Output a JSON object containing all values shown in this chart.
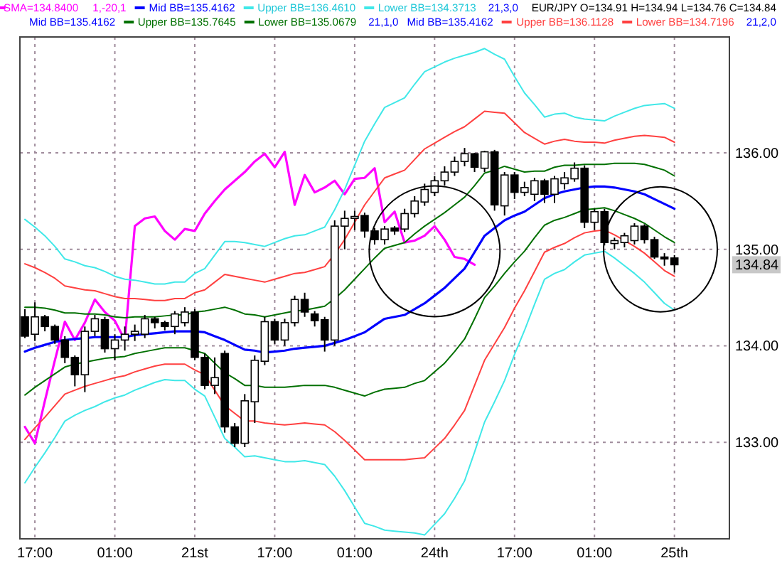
{
  "chart_data": {
    "type": "candlestick",
    "legend": "top",
    "grid": true,
    "categories": [
      null,
      "17:00",
      null,
      null,
      null,
      null,
      null,
      null,
      null,
      "01:00",
      null,
      null,
      null,
      null,
      null,
      null,
      null,
      "21st",
      null,
      null,
      null,
      null,
      null,
      null,
      null,
      "17:00",
      null,
      null,
      null,
      null,
      null,
      null,
      null,
      "01:00",
      null,
      null,
      null,
      null,
      null,
      null,
      null,
      "24th",
      null,
      null,
      null,
      null,
      null,
      null,
      null,
      "17:00",
      null,
      null,
      null,
      null,
      null,
      null,
      null,
      "01:00",
      null,
      null,
      null,
      null,
      null,
      null,
      null,
      "25th"
    ],
    "ylim": [
      132.0,
      137.2
    ],
    "yticks": [
      {
        "value": 133,
        "label": "133.00"
      },
      {
        "value": 134,
        "label": "134.00"
      },
      {
        "value": 135,
        "label": "135.00"
      },
      {
        "value": 136,
        "label": "136.00"
      }
    ],
    "ohlc": [
      [
        134.3,
        134.38,
        134.08,
        134.1
      ],
      [
        134.12,
        134.45,
        134.05,
        134.3
      ],
      [
        134.3,
        134.32,
        134.15,
        134.2
      ],
      [
        134.2,
        134.22,
        134.02,
        134.06
      ],
      [
        134.06,
        134.1,
        133.82,
        133.88
      ],
      [
        133.88,
        133.9,
        133.58,
        133.7
      ],
      [
        133.7,
        134.2,
        133.52,
        134.15
      ],
      [
        134.15,
        134.32,
        134.1,
        134.28
      ],
      [
        134.27,
        134.3,
        133.93,
        133.97
      ],
      [
        133.97,
        134.12,
        133.85,
        134.06
      ],
      [
        134.06,
        134.2,
        133.95,
        134.12
      ],
      [
        134.12,
        134.22,
        134.05,
        134.15
      ],
      [
        134.12,
        134.32,
        134.08,
        134.28
      ],
      [
        134.28,
        134.3,
        134.18,
        134.24
      ],
      [
        134.24,
        134.26,
        134.16,
        134.2
      ],
      [
        134.2,
        134.36,
        134.12,
        134.33
      ],
      [
        134.24,
        134.4,
        134.2,
        134.35
      ],
      [
        134.35,
        134.38,
        133.85,
        133.88
      ],
      [
        133.88,
        133.92,
        133.55,
        133.59
      ],
      [
        133.59,
        133.88,
        133.5,
        133.67
      ],
      [
        133.92,
        133.95,
        133.1,
        133.16
      ],
      [
        133.16,
        133.2,
        132.95,
        132.99
      ],
      [
        132.99,
        133.5,
        132.95,
        133.43
      ],
      [
        133.42,
        133.9,
        133.2,
        133.85
      ],
      [
        133.84,
        134.3,
        133.8,
        134.25
      ],
      [
        134.25,
        134.28,
        134.02,
        134.06
      ],
      [
        134.06,
        134.28,
        134.0,
        134.24
      ],
      [
        134.24,
        134.52,
        134.2,
        134.48
      ],
      [
        134.48,
        134.55,
        134.3,
        134.35
      ],
      [
        134.33,
        134.36,
        134.2,
        134.26
      ],
      [
        134.27,
        134.3,
        133.94,
        134.06
      ],
      [
        134.06,
        135.3,
        134.0,
        135.24
      ],
      [
        135.24,
        135.4,
        135.0,
        135.32
      ],
      [
        135.32,
        135.4,
        135.2,
        135.34
      ],
      [
        135.35,
        135.38,
        135.12,
        135.19
      ],
      [
        135.19,
        135.22,
        135.05,
        135.1
      ],
      [
        135.1,
        135.24,
        135.05,
        135.21
      ],
      [
        135.22,
        135.24,
        135.15,
        135.19
      ],
      [
        135.21,
        135.42,
        135.18,
        135.37
      ],
      [
        135.37,
        135.55,
        135.33,
        135.5
      ],
      [
        135.49,
        135.68,
        135.45,
        135.62
      ],
      [
        135.59,
        135.76,
        135.55,
        135.71
      ],
      [
        135.71,
        135.86,
        135.66,
        135.8
      ],
      [
        135.8,
        135.96,
        135.76,
        135.91
      ],
      [
        135.91,
        136.05,
        135.86,
        135.99
      ],
      [
        135.99,
        136.0,
        135.8,
        135.85
      ],
      [
        135.84,
        136.02,
        135.8,
        136.01
      ],
      [
        136.01,
        136.03,
        135.4,
        135.46
      ],
      [
        135.45,
        135.8,
        135.35,
        135.77
      ],
      [
        135.77,
        135.8,
        135.52,
        135.59
      ],
      [
        135.59,
        135.7,
        135.55,
        135.64
      ],
      [
        135.57,
        135.74,
        135.5,
        135.71
      ],
      [
        135.71,
        135.73,
        135.48,
        135.57
      ],
      [
        135.57,
        135.76,
        135.48,
        135.73
      ],
      [
        135.68,
        135.8,
        135.62,
        135.74
      ],
      [
        135.73,
        135.9,
        135.7,
        135.84
      ],
      [
        135.84,
        135.87,
        135.22,
        135.28
      ],
      [
        135.28,
        135.42,
        135.2,
        135.39
      ],
      [
        135.39,
        135.42,
        135.04,
        135.07
      ],
      [
        135.06,
        135.12,
        135.0,
        135.09
      ],
      [
        135.07,
        135.17,
        135.02,
        135.14
      ],
      [
        135.09,
        135.27,
        135.05,
        135.24
      ],
      [
        135.24,
        135.26,
        135.06,
        135.1
      ],
      [
        135.1,
        135.13,
        134.9,
        134.92
      ],
      [
        134.92,
        134.96,
        134.83,
        134.9
      ],
      [
        134.91,
        134.94,
        134.76,
        134.84
      ]
    ],
    "series": [
      {
        "type": "line",
        "name": "SMA=134.8400",
        "color": "#ff00ff",
        "values": [
          133.16,
          132.99,
          133.43,
          133.85,
          134.25,
          134.06,
          134.24,
          134.48,
          134.35,
          134.26,
          134.06,
          135.24,
          135.32,
          135.34,
          135.19,
          135.1,
          135.21,
          135.19,
          135.37,
          135.5,
          135.62,
          135.71,
          135.8,
          135.91,
          135.99,
          135.85,
          136.01,
          135.46,
          135.77,
          135.59,
          135.64,
          135.71,
          135.57,
          135.73,
          135.74,
          135.84,
          135.28,
          135.39,
          135.07,
          135.09,
          135.14,
          135.24,
          135.1,
          134.92,
          134.9,
          134.84,
          null,
          null,
          null,
          null,
          null,
          null,
          null,
          null,
          null,
          null,
          null,
          null,
          null,
          null,
          null,
          null,
          null,
          null,
          null,
          null
        ]
      },
      {
        "type": "line",
        "name": "Mid BB=135.4162",
        "color": "#0000ff",
        "values": [
          133.94,
          133.98,
          134.01,
          134.04,
          134.06,
          134.07,
          134.08,
          134.09,
          134.09,
          134.09,
          134.09,
          134.11,
          134.12,
          134.13,
          134.14,
          134.15,
          134.15,
          134.15,
          134.14,
          134.1,
          134.06,
          134.01,
          133.96,
          133.95,
          133.93,
          133.94,
          133.95,
          133.97,
          133.98,
          133.99,
          134.0,
          134.03,
          134.06,
          134.1,
          134.14,
          134.21,
          134.28,
          134.3,
          134.32,
          134.38,
          134.44,
          134.52,
          134.6,
          134.7,
          134.8,
          134.97,
          135.14,
          135.22,
          135.3,
          135.35,
          135.39,
          135.46,
          135.53,
          135.57,
          135.6,
          135.62,
          135.64,
          135.65,
          135.65,
          135.64,
          135.62,
          135.6,
          135.57,
          135.52,
          135.47,
          135.42
        ]
      },
      {
        "type": "line",
        "name": "Upper BB=135.7645",
        "color": "#007000",
        "values": [
          134.4,
          134.4,
          134.39,
          134.37,
          134.34,
          134.34,
          134.33,
          134.33,
          134.32,
          134.3,
          134.29,
          134.3,
          134.3,
          134.3,
          134.31,
          134.32,
          134.32,
          134.35,
          134.36,
          134.38,
          134.4,
          134.37,
          134.33,
          134.32,
          134.3,
          134.32,
          134.34,
          134.36,
          134.37,
          134.39,
          134.41,
          134.49,
          134.58,
          134.69,
          134.8,
          134.91,
          135.01,
          135.04,
          135.07,
          135.16,
          135.24,
          135.31,
          135.38,
          135.46,
          135.54,
          135.66,
          135.79,
          135.82,
          135.86,
          135.83,
          135.8,
          135.81,
          135.81,
          135.85,
          135.87,
          135.87,
          135.88,
          135.88,
          135.88,
          135.89,
          135.89,
          135.89,
          135.88,
          135.85,
          135.82,
          135.76
        ]
      },
      {
        "type": "line",
        "name": "Lower BB=135.0679",
        "color": "#007000",
        "values": [
          133.49,
          133.57,
          133.64,
          133.71,
          133.78,
          133.81,
          133.83,
          133.85,
          133.87,
          133.88,
          133.89,
          133.92,
          133.94,
          133.96,
          133.98,
          133.98,
          133.98,
          133.95,
          133.92,
          133.82,
          133.72,
          133.66,
          133.59,
          133.59,
          133.57,
          133.57,
          133.57,
          133.58,
          133.59,
          133.59,
          133.59,
          133.57,
          133.54,
          133.51,
          133.48,
          133.52,
          133.55,
          133.56,
          133.57,
          133.61,
          133.64,
          133.73,
          133.82,
          133.94,
          134.07,
          134.28,
          134.5,
          134.62,
          134.75,
          134.87,
          134.98,
          135.12,
          135.25,
          135.3,
          135.33,
          135.37,
          135.41,
          135.42,
          135.43,
          135.4,
          135.36,
          135.32,
          135.27,
          135.2,
          135.13,
          135.07
        ]
      },
      {
        "type": "line",
        "name": "Upper BB=136.1128",
        "color": "#ff4040",
        "values": [
          134.85,
          134.81,
          134.76,
          134.7,
          134.62,
          134.6,
          134.58,
          134.57,
          134.54,
          134.51,
          134.49,
          134.49,
          134.48,
          134.47,
          134.47,
          134.49,
          134.49,
          134.55,
          134.58,
          134.66,
          134.74,
          134.72,
          134.7,
          134.68,
          134.66,
          134.69,
          134.72,
          134.75,
          134.76,
          134.79,
          134.82,
          134.95,
          135.1,
          135.28,
          135.46,
          135.6,
          135.74,
          135.78,
          135.82,
          135.93,
          136.04,
          136.1,
          136.16,
          136.22,
          136.27,
          136.35,
          136.43,
          136.42,
          136.41,
          136.31,
          136.21,
          136.15,
          136.09,
          136.12,
          136.14,
          136.12,
          136.11,
          136.11,
          136.1,
          136.13,
          136.15,
          136.17,
          136.18,
          136.17,
          136.16,
          136.11
        ]
      },
      {
        "type": "line",
        "name": "Lower BB=134.7196",
        "color": "#ff4040",
        "values": [
          133.03,
          133.15,
          133.26,
          133.38,
          133.5,
          133.54,
          133.58,
          133.61,
          133.64,
          133.67,
          133.69,
          133.73,
          133.76,
          133.79,
          133.81,
          133.81,
          133.81,
          133.75,
          133.7,
          133.54,
          133.38,
          133.3,
          133.22,
          133.22,
          133.2,
          133.19,
          133.18,
          133.19,
          133.2,
          133.19,
          133.18,
          133.11,
          133.02,
          132.92,
          132.82,
          132.82,
          132.82,
          132.82,
          132.82,
          132.83,
          132.84,
          132.94,
          133.04,
          133.18,
          133.33,
          133.59,
          133.85,
          134.02,
          134.19,
          134.39,
          134.57,
          134.77,
          134.97,
          135.02,
          135.06,
          135.12,
          135.17,
          135.19,
          135.2,
          135.15,
          135.09,
          135.03,
          134.96,
          134.87,
          134.78,
          134.72
        ]
      },
      {
        "type": "line",
        "name": "Upper BB=136.4610",
        "color": "#40e8e8",
        "values": [
          135.31,
          135.23,
          135.14,
          135.03,
          134.9,
          134.87,
          134.83,
          134.81,
          134.77,
          134.72,
          134.69,
          134.68,
          134.66,
          134.64,
          134.64,
          134.66,
          134.66,
          134.75,
          134.8,
          134.94,
          135.08,
          135.08,
          135.07,
          135.05,
          135.03,
          135.07,
          135.11,
          135.14,
          135.15,
          135.19,
          135.23,
          135.41,
          135.62,
          135.87,
          136.12,
          136.3,
          136.47,
          136.52,
          136.57,
          136.71,
          136.84,
          136.89,
          136.94,
          136.98,
          137.01,
          137.04,
          137.08,
          137.02,
          136.97,
          136.79,
          136.62,
          136.5,
          136.37,
          136.4,
          136.41,
          136.37,
          136.35,
          136.34,
          136.33,
          136.38,
          136.42,
          136.46,
          136.49,
          136.5,
          136.51,
          136.46
        ]
      },
      {
        "type": "line",
        "name": "Lower BB=134.3713",
        "color": "#40e8e8",
        "values": [
          132.58,
          132.74,
          132.89,
          133.05,
          133.22,
          133.28,
          133.33,
          133.37,
          133.42,
          133.46,
          133.49,
          133.54,
          133.58,
          133.62,
          133.65,
          133.64,
          133.64,
          133.55,
          133.48,
          133.26,
          133.04,
          132.95,
          132.85,
          132.86,
          132.84,
          132.82,
          132.8,
          132.8,
          132.81,
          132.79,
          132.77,
          132.65,
          132.5,
          132.33,
          132.16,
          132.13,
          132.09,
          132.08,
          132.07,
          132.06,
          132.04,
          132.15,
          132.26,
          132.42,
          132.6,
          132.9,
          133.21,
          133.42,
          133.64,
          133.91,
          134.16,
          134.43,
          134.69,
          134.75,
          134.79,
          134.87,
          134.94,
          134.96,
          134.98,
          134.91,
          134.83,
          134.75,
          134.66,
          134.55,
          134.44,
          134.37
        ]
      }
    ],
    "annotations": [
      "1,-20,1",
      "21,3,0",
      "EUR/JPY O=134.91 H=134.94 L=134.76 C=134.84",
      "Mid BB=135.4162",
      "21,1,0",
      "Mid BB=135.4162",
      "21,2,0",
      "134.84"
    ]
  }
}
